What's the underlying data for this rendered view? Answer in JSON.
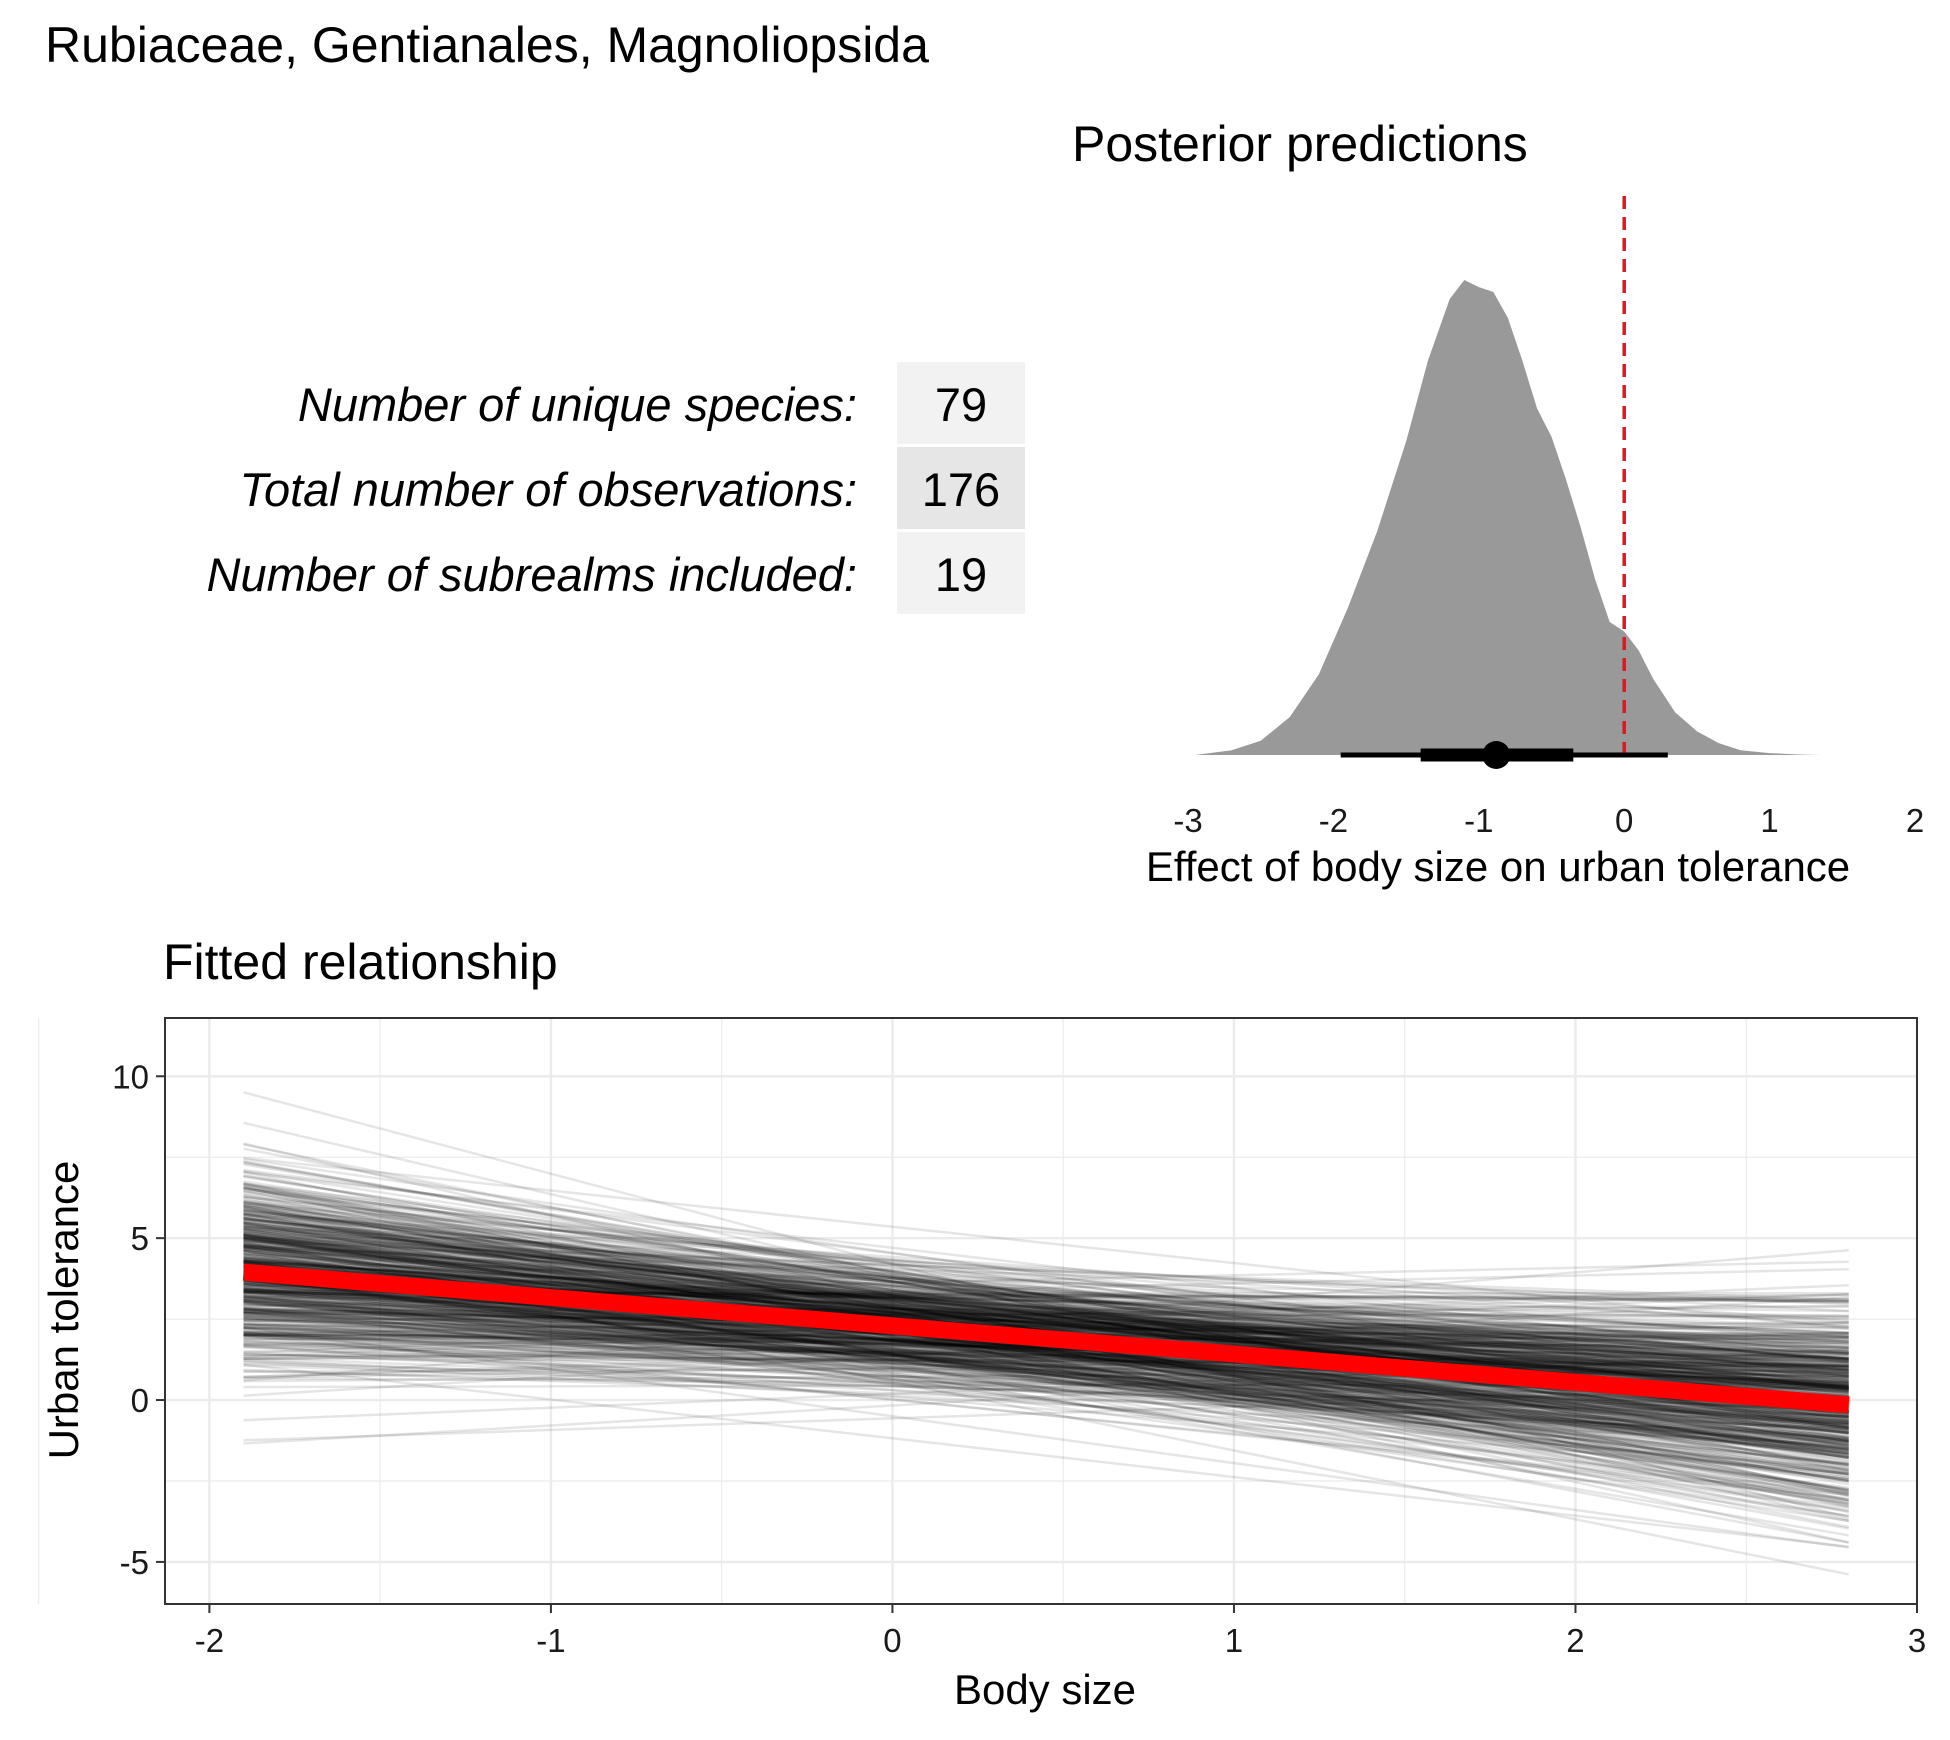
{
  "title": "Rubiaceae, Gentianales, Magnoliopsida",
  "stats": {
    "rows": [
      {
        "label": "Number of unique species:",
        "value": "79"
      },
      {
        "label": "Total number of observations:",
        "value": "176"
      },
      {
        "label": "Number of subrealms included:",
        "value": "19"
      }
    ],
    "cell_colors": [
      "#f2f2f2",
      "#e6e6e6",
      "#f2f2f2"
    ]
  },
  "colors": {
    "density_fill": "#999999",
    "reference_line": "#e8141c",
    "fit_line": "#ff0000",
    "draw_lines": "#000000",
    "grid": "#ebebeb"
  },
  "chart_data": [
    {
      "type": "area",
      "title": "Posterior predictions",
      "xlabel": "Effect of body size on urban tolerance",
      "ylabel": "",
      "xlim": [
        -3,
        2
      ],
      "xticks": [
        "-3",
        "-2",
        "-1",
        "0",
        "1",
        "2"
      ],
      "grid": false,
      "density": {
        "x": [
          -2.95,
          -2.7,
          -2.5,
          -2.3,
          -2.1,
          -1.9,
          -1.7,
          -1.5,
          -1.35,
          -1.2,
          -1.1,
          -1.0,
          -0.9,
          -0.8,
          -0.7,
          -0.6,
          -0.5,
          -0.4,
          -0.3,
          -0.2,
          -0.1,
          0.0,
          0.1,
          0.2,
          0.35,
          0.5,
          0.65,
          0.8,
          1.0,
          1.2,
          1.35
        ],
        "y": [
          0.0,
          0.01,
          0.03,
          0.08,
          0.17,
          0.31,
          0.47,
          0.66,
          0.83,
          0.96,
          1.0,
          0.985,
          0.975,
          0.92,
          0.83,
          0.73,
          0.67,
          0.58,
          0.48,
          0.37,
          0.28,
          0.26,
          0.22,
          0.16,
          0.09,
          0.05,
          0.025,
          0.01,
          0.004,
          0.001,
          0.0
        ]
      },
      "point_estimate": -0.88,
      "interval_66": [
        -1.4,
        -0.35
      ],
      "interval_95": [
        -1.95,
        0.3
      ],
      "reference_x": 0
    },
    {
      "type": "line",
      "title": "Fitted relationship",
      "xlabel": "Body size",
      "ylabel": "Urban tolerance",
      "xlim": [
        -2.13,
        3.0
      ],
      "ylim": [
        -6.3,
        11.8
      ],
      "xticks": [
        "-2",
        "-1",
        "0",
        "1",
        "2",
        "3"
      ],
      "yticks": [
        "-5",
        "0",
        "5",
        "10"
      ],
      "grid": true,
      "x_range": [
        -1.9,
        2.8
      ],
      "mean_line": {
        "x": [
          -1.9,
          2.8
        ],
        "y": [
          3.95,
          -0.15
        ]
      },
      "draws": {
        "count": 600,
        "slope_mean": -0.88,
        "slope_sd": 0.55,
        "mean_at_center": 1.9,
        "center_x": 0.45,
        "sd_at_center": 0.9
      }
    }
  ]
}
